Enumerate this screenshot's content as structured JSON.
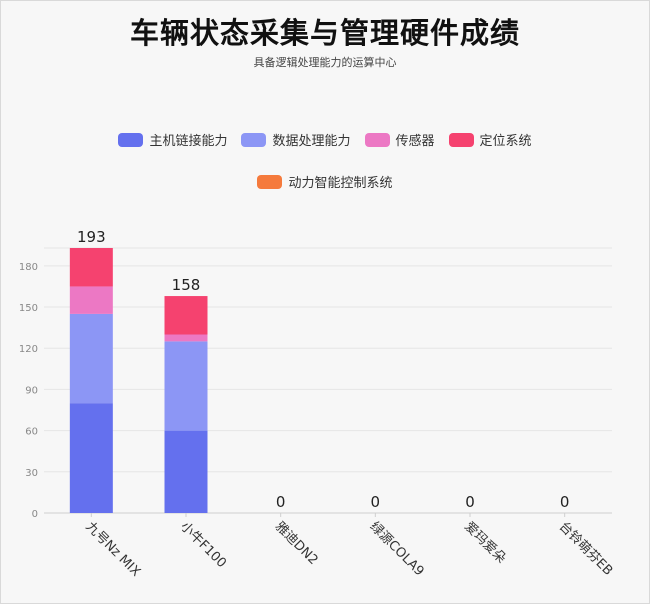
{
  "chart_data": {
    "type": "bar",
    "stacked": true,
    "title": "车辆状态采集与管理硬件成绩",
    "subtitle": "具备逻辑处理能力的运算中心",
    "categories": [
      "九号Nz MIX",
      "小牛F100",
      "雅迪DN2",
      "绿源COLA9",
      "爱玛爱朵",
      "台铃萌芬EB"
    ],
    "series": [
      {
        "name": "主机链接能力",
        "color": "#6470ee",
        "values": [
          80,
          60,
          0,
          0,
          0,
          0
        ]
      },
      {
        "name": "数据处理能力",
        "color": "#8c96f5",
        "values": [
          65,
          65,
          0,
          0,
          0,
          0
        ]
      },
      {
        "name": "传感器",
        "color": "#ec78c4",
        "values": [
          20,
          5,
          0,
          0,
          0,
          0
        ]
      },
      {
        "name": "定位系统",
        "color": "#f5426f",
        "values": [
          28,
          28,
          0,
          0,
          0,
          0
        ]
      },
      {
        "name": "动力智能控制系统",
        "color": "#f57a3c",
        "values": [
          0,
          0,
          0,
          0,
          0,
          0
        ]
      }
    ],
    "totals": [
      193,
      158,
      0,
      0,
      0,
      0
    ],
    "ylim": [
      0,
      180
    ],
    "yticks": [
      0,
      30,
      60,
      90,
      120,
      150,
      180
    ],
    "grid": true,
    "legend_position": "top"
  }
}
